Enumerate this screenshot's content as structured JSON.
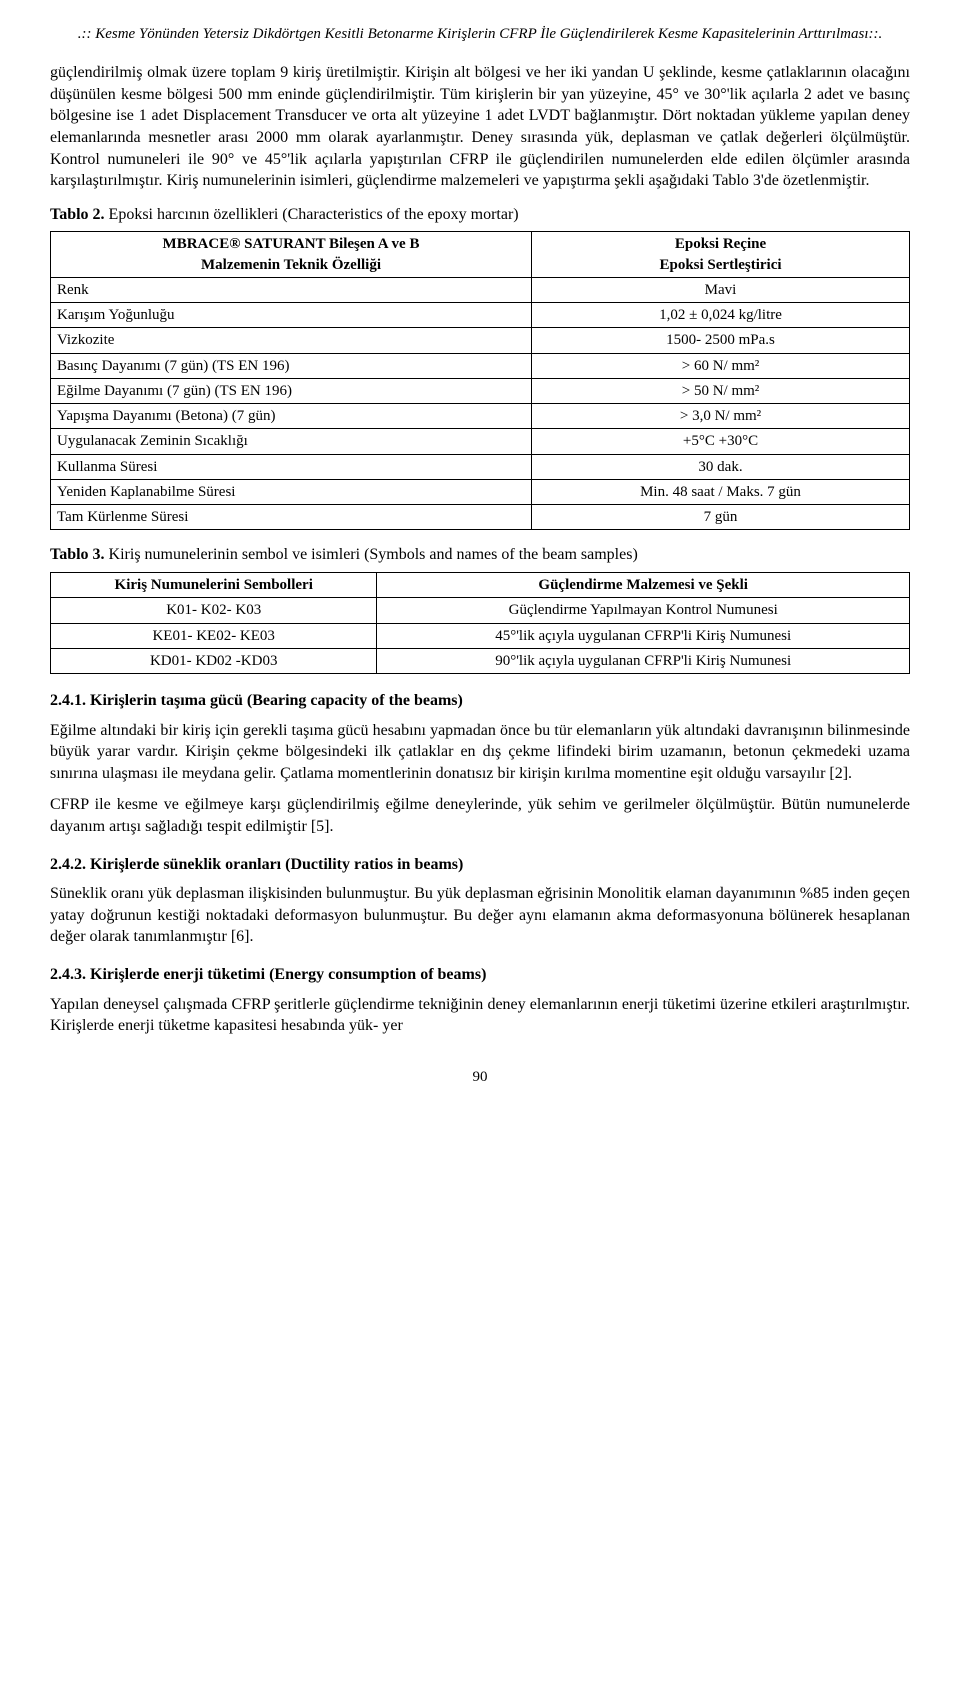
{
  "running_header": ".:: Kesme Yönünden Yetersiz Dikdörtgen Kesitli Betonarme Kirişlerin CFRP İle Güçlendirilerek Kesme Kapasitelerinin Arttırılması::.",
  "para1": "güçlendirilmiş olmak üzere toplam 9 kiriş üretilmiştir. Kirişin alt bölgesi ve her iki yandan U şeklinde, kesme çatlaklarının olacağını düşünülen kesme bölgesi 500 mm eninde güçlendirilmiştir. Tüm kirişlerin bir yan yüzeyine, 45° ve 30°'lik açılarla 2 adet ve basınç bölgesine ise 1 adet Displacement Transducer ve orta alt yüzeyine 1 adet LVDT bağlanmıştır. Dört noktadan yükleme yapılan deney elemanlarında mesnetler arası 2000 mm olarak ayarlanmıştır. Deney sırasında yük, deplasman ve çatlak değerleri ölçülmüştür. Kontrol numuneleri ile 90° ve 45°'lik açılarla yapıştırılan CFRP ile güçlendirilen numunelerden elde edilen ölçümler arasında karşılaştırılmıştır. Kiriş numunelerinin isimleri, güçlendirme malzemeleri ve yapıştırma şekli aşağıdaki Tablo 3'de özetlenmiştir.",
  "table2": {
    "caption_label": "Tablo 2.",
    "caption_text": " Epoksi harcının özellikleri (Characteristics of the epoxy mortar)",
    "head_left_top": "MBRACE® SATURANT Bileşen A ve B",
    "head_left_bottom": "Malzemenin Teknik Özelliği",
    "head_right_top": "Epoksi Reçine",
    "head_right_bottom": "Epoksi Sertleştirici",
    "rows": [
      [
        "Renk",
        "Mavi"
      ],
      [
        "Karışım Yoğunluğu",
        "1,02 ± 0,024 kg/litre"
      ],
      [
        "Vizkozite",
        "1500- 2500 mPa.s"
      ],
      [
        "Basınç Dayanımı (7 gün) (TS EN 196)",
        "> 60 N/ mm²"
      ],
      [
        "Eğilme Dayanımı (7 gün) (TS EN 196)",
        "> 50 N/ mm²"
      ],
      [
        "Yapışma Dayanımı (Betona) (7 gün)",
        "> 3,0 N/ mm²"
      ],
      [
        "Uygulanacak Zeminin Sıcaklığı",
        "+5°C +30°C"
      ],
      [
        "Kullanma Süresi",
        "30 dak."
      ],
      [
        "Yeniden Kaplanabilme Süresi",
        "Min. 48 saat / Maks. 7 gün"
      ],
      [
        "Tam Kürlenme Süresi",
        "7 gün"
      ]
    ]
  },
  "table3": {
    "caption_label": "Tablo 3.",
    "caption_text": " Kiriş numunelerinin sembol ve isimleri (Symbols and names of the beam samples)",
    "head_left": "Kiriş Numunelerini Sembolleri",
    "head_right": "Güçlendirme Malzemesi ve Şekli",
    "rows": [
      [
        "K01- K02- K03",
        "Güçlendirme Yapılmayan Kontrol Numunesi"
      ],
      [
        "KE01- KE02- KE03",
        "45°'lik açıyla uygulanan CFRP'li Kiriş Numunesi"
      ],
      [
        "KD01- KD02 -KD03",
        "90°'lik açıyla uygulanan CFRP'li Kiriş Numunesi"
      ]
    ]
  },
  "section241_title": "2.4.1. Kirişlerin taşıma gücü  (Bearing capacity of the beams)",
  "section241_p1": "Eğilme altındaki bir kiriş için gerekli taşıma gücü hesabını yapmadan önce bu tür elemanların yük altındaki davranışının bilinmesinde büyük yarar vardır. Kirişin çekme bölgesindeki ilk çatlaklar en dış çekme lifindeki birim uzamanın, betonun çekmedeki uzama sınırına ulaşması ile meydana gelir. Çatlama momentlerinin donatısız bir kirişin kırılma momentine eşit olduğu varsayılır [2].",
  "section241_p2": "CFRP ile kesme ve eğilmeye karşı güçlendirilmiş eğilme deneylerinde, yük sehim ve gerilmeler ölçülmüştür. Bütün numunelerde dayanım artışı sağladığı tespit edilmiştir [5].",
  "section242_title": "2.4.2. Kirişlerde süneklik oranları (Ductility ratios in beams)",
  "section242_p1": "Süneklik oranı yük deplasman ilişkisinden bulunmuştur. Bu yük deplasman eğrisinin Monolitik elaman dayanımının %85 inden geçen yatay doğrunun kestiği noktadaki deformasyon bulunmuştur. Bu değer aynı elamanın akma deformasyonuna bölünerek hesaplanan değer olarak tanımlanmıştır [6].",
  "section243_title": "2.4.3. Kirişlerde enerji tüketimi (Energy consumption of beams)",
  "section243_p1": "Yapılan deneysel çalışmada CFRP şeritlerle güçlendirme tekniğinin deney elemanlarının enerji tüketimi üzerine etkileri araştırılmıştır. Kirişlerde enerji tüketme kapasitesi hesabında yük- yer",
  "pagenum": "90"
}
